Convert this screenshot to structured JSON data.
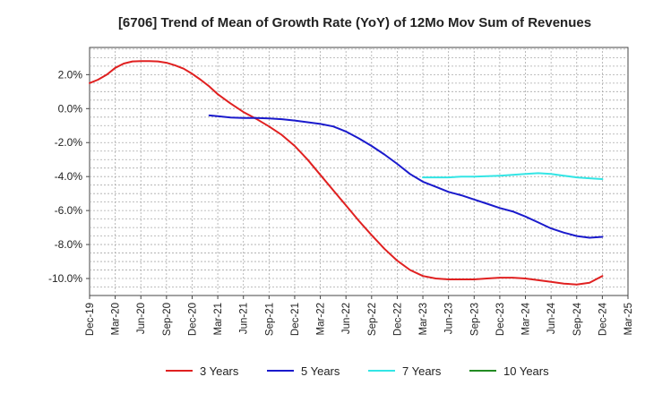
{
  "chart_data": {
    "type": "line",
    "title": "[6706]  Trend of Mean of Growth Rate (YoY) of 12Mo Mov Sum of Revenues",
    "xlabel": "",
    "ylabel": "",
    "ylim": [
      -11,
      3.6
    ],
    "y_ticks": [
      2.0,
      0.0,
      -2.0,
      -4.0,
      -6.0,
      -8.0,
      -10.0
    ],
    "y_tick_labels": [
      "2.0%",
      "0.0%",
      "-2.0%",
      "-4.0%",
      "-6.0%",
      "-8.0%",
      "-10.0%"
    ],
    "x_tick_labels": [
      "Dec-19",
      "Mar-20",
      "Jun-20",
      "Sep-20",
      "Dec-20",
      "Mar-21",
      "Jun-21",
      "Sep-21",
      "Dec-21",
      "Mar-22",
      "Jun-22",
      "Sep-22",
      "Dec-22",
      "Mar-23",
      "Jun-23",
      "Sep-23",
      "Dec-23",
      "Mar-24",
      "Jun-24",
      "Sep-24",
      "Dec-24",
      "Mar-25"
    ],
    "grid": true,
    "legend_position": "bottom",
    "series": [
      {
        "name": "3 Years",
        "color": "#e02020",
        "x": [
          0,
          0.33,
          0.67,
          1,
          1.33,
          1.67,
          2,
          2.33,
          2.67,
          3,
          3.33,
          3.67,
          4,
          4.33,
          4.67,
          5,
          5.5,
          6,
          6.5,
          7,
          7.5,
          8,
          8.5,
          9,
          9.5,
          10,
          10.5,
          11,
          11.5,
          12,
          12.5,
          13,
          13.5,
          14,
          14.5,
          15,
          15.5,
          16,
          16.5,
          17,
          17.5,
          18,
          18.5,
          19,
          19.5,
          20
        ],
        "values": [
          1.5,
          1.7,
          2.0,
          2.4,
          2.65,
          2.78,
          2.8,
          2.8,
          2.78,
          2.7,
          2.55,
          2.35,
          2.05,
          1.7,
          1.3,
          0.85,
          0.3,
          -0.2,
          -0.6,
          -1.05,
          -1.55,
          -2.2,
          -3.0,
          -3.9,
          -4.8,
          -5.7,
          -6.6,
          -7.45,
          -8.25,
          -8.95,
          -9.5,
          -9.85,
          -10.0,
          -10.05,
          -10.05,
          -10.05,
          -10.0,
          -9.95,
          -9.95,
          -10.0,
          -10.1,
          -10.2,
          -10.3,
          -10.35,
          -10.25,
          -9.85
        ]
      },
      {
        "name": "5 Years",
        "color": "#1a1acc",
        "x": [
          4.67,
          5,
          5.5,
          6,
          6.5,
          7,
          7.5,
          8,
          8.5,
          9,
          9.5,
          10,
          10.5,
          11,
          11.5,
          12,
          12.5,
          13,
          13.5,
          14,
          14.5,
          15,
          15.5,
          16,
          16.5,
          17,
          17.5,
          18,
          18.5,
          19,
          19.5,
          20
        ],
        "values": [
          -0.4,
          -0.45,
          -0.52,
          -0.55,
          -0.55,
          -0.58,
          -0.62,
          -0.7,
          -0.8,
          -0.9,
          -1.05,
          -1.35,
          -1.75,
          -2.2,
          -2.7,
          -3.25,
          -3.85,
          -4.3,
          -4.6,
          -4.9,
          -5.1,
          -5.35,
          -5.6,
          -5.85,
          -6.05,
          -6.35,
          -6.7,
          -7.05,
          -7.3,
          -7.5,
          -7.6,
          -7.55
        ]
      },
      {
        "name": "7 Years",
        "color": "#33e5e5",
        "x": [
          13,
          13.5,
          14,
          14.5,
          15,
          15.5,
          16,
          16.5,
          17,
          17.5,
          18,
          18.5,
          19,
          19.5,
          20
        ],
        "values": [
          -4.05,
          -4.05,
          -4.05,
          -4.0,
          -4.0,
          -3.98,
          -3.95,
          -3.9,
          -3.85,
          -3.8,
          -3.85,
          -3.95,
          -4.05,
          -4.1,
          -4.15
        ]
      },
      {
        "name": "10 Years",
        "color": "#228b22",
        "x": [],
        "values": []
      }
    ]
  }
}
